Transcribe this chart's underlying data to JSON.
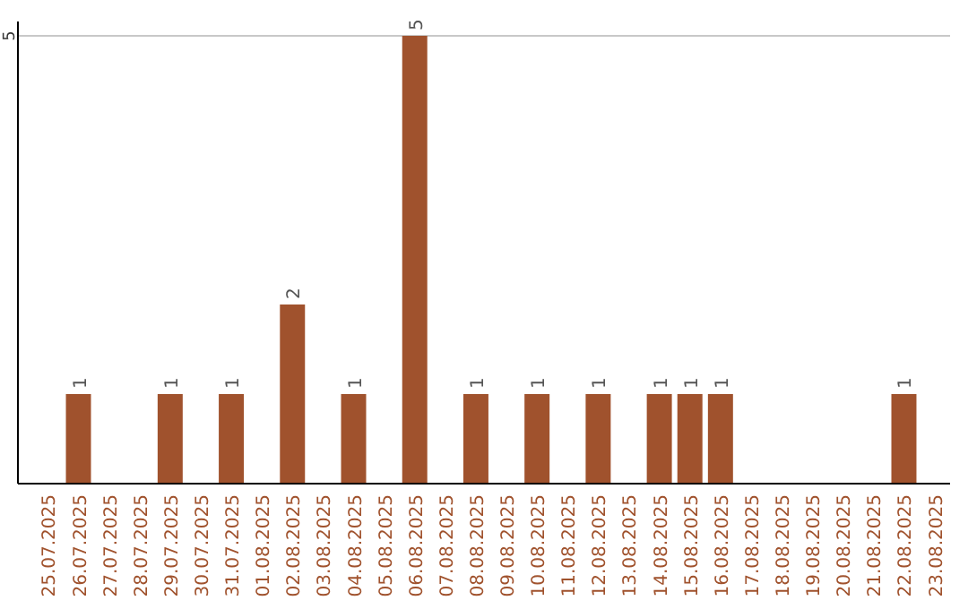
{
  "chart_data": {
    "type": "bar",
    "categories": [
      "25.07.2025",
      "26.07.2025",
      "27.07.2025",
      "28.07.2025",
      "29.07.2025",
      "30.07.2025",
      "31.07.2025",
      "01.08.2025",
      "02.08.2025",
      "03.08.2025",
      "04.08.2025",
      "05.08.2025",
      "06.08.2025",
      "07.08.2025",
      "08.08.2025",
      "09.08.2025",
      "10.08.2025",
      "11.08.2025",
      "12.08.2025",
      "13.08.2025",
      "14.08.2025",
      "15.08.2025",
      "16.08.2025",
      "17.08.2025",
      "18.08.2025",
      "19.08.2025",
      "20.08.2025",
      "21.08.2025",
      "22.08.2025",
      "23.08.2025"
    ],
    "values": [
      0,
      1,
      0,
      0,
      1,
      0,
      1,
      0,
      2,
      0,
      1,
      0,
      5,
      0,
      1,
      0,
      1,
      0,
      1,
      0,
      1,
      1,
      1,
      0,
      0,
      0,
      0,
      0,
      1,
      0
    ],
    "value_labels": [
      null,
      "1",
      null,
      null,
      "1",
      null,
      "1",
      null,
      "2",
      null,
      "1",
      null,
      "5",
      null,
      "1",
      null,
      "1",
      null,
      "1",
      null,
      "1",
      "1",
      "1",
      null,
      null,
      null,
      null,
      null,
      "1",
      null
    ],
    "color": "#a0522d",
    "ylim": [
      0,
      5
    ],
    "yticks": [
      5
    ],
    "ref_lines": [
      {
        "axis": "y",
        "value": 5,
        "color": "#c8c8c8"
      }
    ]
  }
}
